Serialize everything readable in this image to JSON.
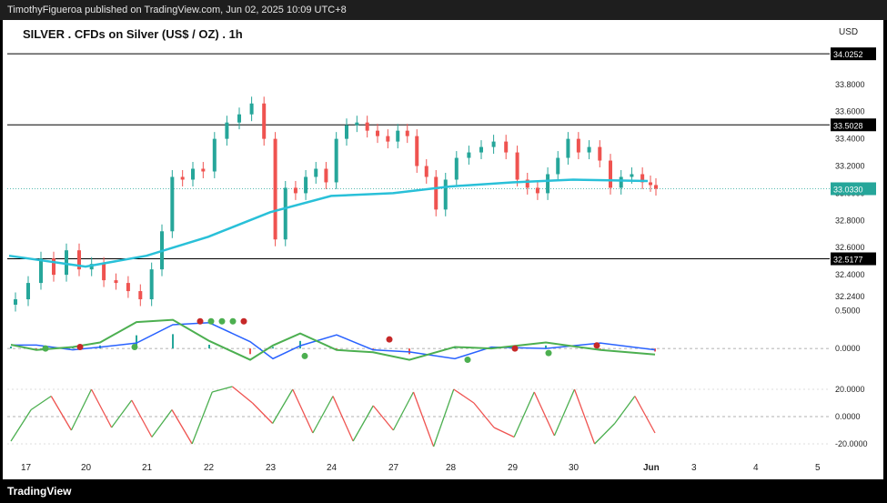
{
  "header": {
    "attribution": "TimothyFigueroa published on TradingView.com, Jun 02, 2025 10:09 UTC+8"
  },
  "chart_title": "SILVER . CFDs on Silver (US$ / OZ) . 1h",
  "currency_label": "USD",
  "footer": {
    "logo": "TradingView"
  },
  "colors": {
    "up": "#26a69a",
    "down": "#ef5350",
    "ma": "#29c0d8",
    "osc_up": "#4caf50",
    "osc_down": "#c62828",
    "signal": "#2962ff"
  },
  "chart_data": [
    {
      "type": "candlestick",
      "title": "SILVER . CFDs on Silver (US$ / OZ) . 1h",
      "x_tick_labels": [
        "17",
        "20",
        "21",
        "22",
        "23",
        "24",
        "27",
        "28",
        "29",
        "30",
        "Jun",
        "3",
        "4",
        "5"
      ],
      "y_tick_labels": [
        "33.8000",
        "33.6000",
        "33.4000",
        "33.2000",
        "33.0000",
        "32.8000",
        "32.6000",
        "32.4000",
        "32.2400"
      ],
      "ylim": [
        32.18,
        34.12
      ],
      "horizontal_levels": [
        34.0252,
        33.5028,
        32.5177
      ],
      "level_labels": [
        "34.0252",
        "33.5028",
        "32.5177"
      ],
      "last_price": 33.033,
      "last_price_label": "33.0330",
      "close_path": [
        [
          "17",
          32.22
        ],
        [
          "17",
          32.34
        ],
        [
          "17",
          32.52
        ],
        [
          "17",
          32.4
        ],
        [
          "17",
          32.58
        ],
        [
          "17",
          32.44
        ],
        [
          "20",
          32.48
        ],
        [
          "20",
          32.36
        ],
        [
          "20",
          32.34
        ],
        [
          "20",
          32.28
        ],
        [
          "20",
          32.22
        ],
        [
          "21",
          32.44
        ],
        [
          "21",
          32.72
        ],
        [
          "21",
          33.12
        ],
        [
          "21",
          33.1
        ],
        [
          "21",
          33.18
        ],
        [
          "21",
          33.16
        ],
        [
          "22",
          33.4
        ],
        [
          "22",
          33.52
        ],
        [
          "22",
          33.58
        ],
        [
          "22",
          33.66
        ],
        [
          "22",
          33.4
        ],
        [
          "23",
          32.66
        ],
        [
          "23",
          33.04
        ],
        [
          "23",
          33.0
        ],
        [
          "23",
          33.12
        ],
        [
          "23",
          33.18
        ],
        [
          "23",
          33.08
        ],
        [
          "24",
          33.4
        ],
        [
          "24",
          33.5
        ],
        [
          "24",
          33.52
        ],
        [
          "24",
          33.46
        ],
        [
          "24",
          33.42
        ],
        [
          "24",
          33.38
        ],
        [
          "27",
          33.46
        ],
        [
          "27",
          33.42
        ],
        [
          "27",
          33.2
        ],
        [
          "27",
          33.12
        ],
        [
          "27",
          32.88
        ],
        [
          "27",
          33.1
        ],
        [
          "28",
          33.26
        ],
        [
          "28",
          33.3
        ],
        [
          "28",
          33.34
        ],
        [
          "28",
          33.38
        ],
        [
          "28",
          33.3
        ],
        [
          "29",
          33.1
        ],
        [
          "29",
          33.04
        ],
        [
          "29",
          33.0
        ],
        [
          "29",
          33.14
        ],
        [
          "29",
          33.26
        ],
        [
          "29",
          33.4
        ],
        [
          "30",
          33.3
        ],
        [
          "30",
          33.34
        ],
        [
          "30",
          33.24
        ],
        [
          "30",
          33.04
        ],
        [
          "30",
          33.12
        ],
        [
          "30",
          33.14
        ],
        [
          "30",
          33.08
        ],
        [
          "Jun",
          33.06
        ],
        [
          "Jun",
          33.033
        ]
      ],
      "moving_average": [
        [
          "17",
          32.54
        ],
        [
          "20",
          32.46
        ],
        [
          "21",
          32.54
        ],
        [
          "22",
          32.68
        ],
        [
          "23",
          32.86
        ],
        [
          "24",
          32.98
        ],
        [
          "27",
          33.0
        ],
        [
          "28",
          33.05
        ],
        [
          "29",
          33.08
        ],
        [
          "30",
          33.1
        ],
        [
          "Jun",
          33.09
        ]
      ]
    },
    {
      "type": "line",
      "name": "oscillator",
      "y_tick_labels": [
        "0.5000",
        "0.0000"
      ],
      "ylim": [
        -0.3,
        0.52
      ]
    },
    {
      "type": "line",
      "name": "momentum",
      "y_tick_labels": [
        "20.0000",
        "0.0000",
        "-20.0000"
      ],
      "ylim": [
        -28,
        28
      ]
    }
  ]
}
